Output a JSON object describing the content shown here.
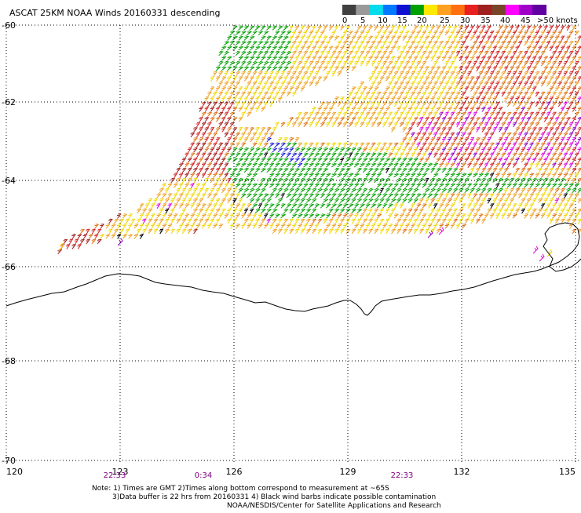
{
  "title": "ASCAT 25KM NOAA Winds 20160331 descending",
  "legend": {
    "unit": "knots",
    "labels": [
      "0",
      "5",
      "10",
      "15",
      "20",
      "25",
      "30",
      "35",
      "40",
      "45",
      ">50 knots"
    ],
    "colors": [
      "#404040",
      "#9a9a9a",
      "#00dcec",
      "#0078ff",
      "#1010d0",
      "#00a000",
      "#ffe800",
      "#ffa020",
      "#ff7010",
      "#e82020",
      "#a02020",
      "#7a4428",
      "#ff00ff",
      "#a000c8",
      "#6000a0"
    ]
  },
  "map": {
    "lon_ticks": [
      "120",
      "123",
      "126",
      "129",
      "132",
      "135"
    ],
    "lat_ticks": [
      "-60",
      "-62",
      "-64",
      "-66",
      "-68",
      "-70"
    ],
    "pass_times": [
      "22:33",
      "0:34",
      "22:33"
    ]
  },
  "wind_colors": {
    "calm_blue": "#1a1ad8",
    "green": "#00a000",
    "yellow": "#f0d800",
    "orange": "#f0a020",
    "dark_orange": "#e07010",
    "red": "#d42020",
    "dark_red": "#a01818",
    "magenta": "#e000e0",
    "purple": "#9000c0",
    "contaminated": "#000000"
  },
  "notes": {
    "line1": "Note: 1) Times are GMT 2)Times along bottom correspond to measurement at ~65S",
    "line2": "3)Data buffer is 22 hrs from 20160331 4) Black wind barbs indicate possible contamination",
    "line3": "NOAA/NESDIS/Center for Satellite Applications and Research"
  }
}
